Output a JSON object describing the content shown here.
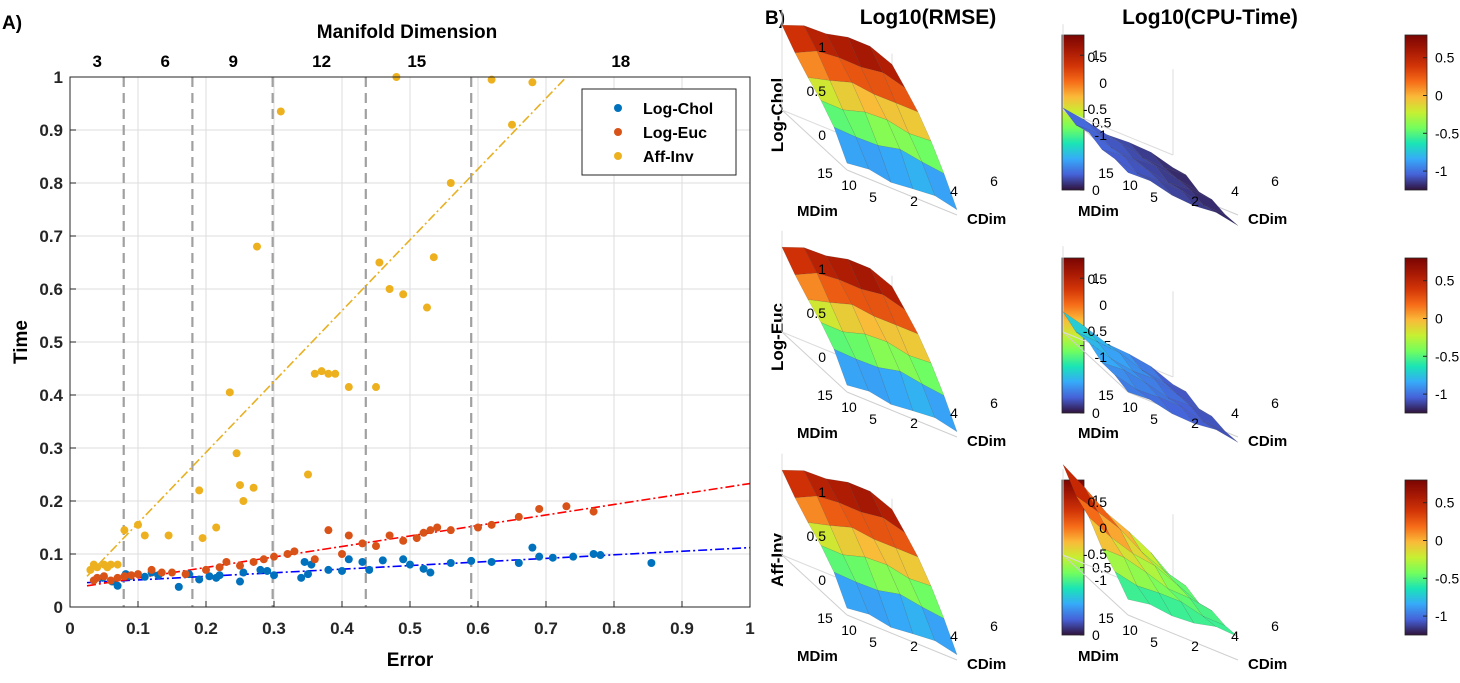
{
  "panel_a_label": "A)",
  "panel_b_label": "B)",
  "chart_data": [
    {
      "type": "scatter",
      "title": "",
      "xlabel": "Error",
      "ylabel": "Time",
      "top_axis_label": "Manifold Dimension",
      "xlim": [
        0,
        1
      ],
      "ylim": [
        0,
        1
      ],
      "x_ticks": [
        0,
        0.1,
        0.2,
        0.3,
        0.4,
        0.5,
        0.6,
        0.7,
        0.8,
        0.9,
        1
      ],
      "x_tick_labels": [
        "0",
        "0.1",
        "0.2",
        "0.3",
        "0.4",
        "0.5",
        "0.6",
        "0.7",
        "0.8",
        "0.9",
        "1"
      ],
      "y_ticks": [
        0,
        0.1,
        0.2,
        0.3,
        0.4,
        0.5,
        0.6,
        0.7,
        0.8,
        0.9,
        1
      ],
      "y_tick_labels": [
        "0",
        "0.1",
        "0.2",
        "0.3",
        "0.4",
        "0.5",
        "0.6",
        "0.7",
        "0.8",
        "0.9",
        "1"
      ],
      "grid": true,
      "legend_position": "top-right",
      "dimension_boundaries": [
        0.079,
        0.18,
        0.298,
        0.435,
        0.59
      ],
      "dimension_labels": [
        {
          "label": "3",
          "x": 0.04
        },
        {
          "label": "6",
          "x": 0.14
        },
        {
          "label": "9",
          "x": 0.24
        },
        {
          "label": "12",
          "x": 0.37
        },
        {
          "label": "15",
          "x": 0.51
        },
        {
          "label": "18",
          "x": 0.81
        }
      ],
      "series": [
        {
          "name": "Log-Chol",
          "color": "#0072BD",
          "line_color": "#0000FF",
          "trend": [
            [
              0.025,
              0.046
            ],
            [
              1.0,
              0.112
            ]
          ],
          "points": [
            [
              0.048,
              0.055
            ],
            [
              0.062,
              0.048
            ],
            [
              0.07,
              0.04
            ],
            [
              0.082,
              0.062
            ],
            [
              0.088,
              0.058
            ],
            [
              0.11,
              0.057
            ],
            [
              0.12,
              0.065
            ],
            [
              0.13,
              0.06
            ],
            [
              0.16,
              0.038
            ],
            [
              0.175,
              0.062
            ],
            [
              0.19,
              0.052
            ],
            [
              0.205,
              0.058
            ],
            [
              0.215,
              0.055
            ],
            [
              0.22,
              0.06
            ],
            [
              0.25,
              0.048
            ],
            [
              0.255,
              0.065
            ],
            [
              0.28,
              0.07
            ],
            [
              0.29,
              0.068
            ],
            [
              0.3,
              0.06
            ],
            [
              0.34,
              0.055
            ],
            [
              0.345,
              0.085
            ],
            [
              0.35,
              0.062
            ],
            [
              0.355,
              0.08
            ],
            [
              0.38,
              0.07
            ],
            [
              0.4,
              0.068
            ],
            [
              0.41,
              0.09
            ],
            [
              0.43,
              0.085
            ],
            [
              0.44,
              0.07
            ],
            [
              0.46,
              0.088
            ],
            [
              0.49,
              0.09
            ],
            [
              0.5,
              0.08
            ],
            [
              0.52,
              0.072
            ],
            [
              0.53,
              0.065
            ],
            [
              0.56,
              0.083
            ],
            [
              0.59,
              0.087
            ],
            [
              0.62,
              0.085
            ],
            [
              0.66,
              0.083
            ],
            [
              0.68,
              0.112
            ],
            [
              0.69,
              0.095
            ],
            [
              0.71,
              0.093
            ],
            [
              0.74,
              0.095
            ],
            [
              0.77,
              0.1
            ],
            [
              0.78,
              0.098
            ],
            [
              0.855,
              0.083
            ]
          ]
        },
        {
          "name": "Log-Euc",
          "color": "#D95319",
          "line_color": "#FF0000",
          "trend": [
            [
              0.025,
              0.04
            ],
            [
              1.0,
              0.233
            ]
          ],
          "points": [
            [
              0.035,
              0.05
            ],
            [
              0.04,
              0.055
            ],
            [
              0.05,
              0.058
            ],
            [
              0.06,
              0.05
            ],
            [
              0.07,
              0.055
            ],
            [
              0.08,
              0.058
            ],
            [
              0.09,
              0.06
            ],
            [
              0.1,
              0.062
            ],
            [
              0.12,
              0.07
            ],
            [
              0.135,
              0.065
            ],
            [
              0.15,
              0.065
            ],
            [
              0.17,
              0.062
            ],
            [
              0.2,
              0.07
            ],
            [
              0.22,
              0.075
            ],
            [
              0.23,
              0.085
            ],
            [
              0.25,
              0.078
            ],
            [
              0.27,
              0.085
            ],
            [
              0.285,
              0.09
            ],
            [
              0.3,
              0.095
            ],
            [
              0.32,
              0.1
            ],
            [
              0.33,
              0.105
            ],
            [
              0.36,
              0.09
            ],
            [
              0.38,
              0.145
            ],
            [
              0.4,
              0.1
            ],
            [
              0.41,
              0.135
            ],
            [
              0.43,
              0.12
            ],
            [
              0.45,
              0.115
            ],
            [
              0.47,
              0.135
            ],
            [
              0.49,
              0.125
            ],
            [
              0.51,
              0.13
            ],
            [
              0.52,
              0.14
            ],
            [
              0.53,
              0.145
            ],
            [
              0.54,
              0.15
            ],
            [
              0.56,
              0.145
            ],
            [
              0.6,
              0.15
            ],
            [
              0.62,
              0.155
            ],
            [
              0.66,
              0.17
            ],
            [
              0.69,
              0.185
            ],
            [
              0.73,
              0.19
            ],
            [
              0.77,
              0.18
            ]
          ]
        },
        {
          "name": "Aff-Inv",
          "color": "#EDB120",
          "line_color": "#E8B023",
          "trend": [
            [
              0.025,
              0.058
            ],
            [
              0.73,
              1.0
            ]
          ],
          "points": [
            [
              0.03,
              0.07
            ],
            [
              0.035,
              0.08
            ],
            [
              0.04,
              0.075
            ],
            [
              0.05,
              0.08
            ],
            [
              0.055,
              0.075
            ],
            [
              0.06,
              0.08
            ],
            [
              0.07,
              0.08
            ],
            [
              0.08,
              0.145
            ],
            [
              0.1,
              0.155
            ],
            [
              0.11,
              0.135
            ],
            [
              0.145,
              0.135
            ],
            [
              0.19,
              0.22
            ],
            [
              0.195,
              0.13
            ],
            [
              0.215,
              0.15
            ],
            [
              0.235,
              0.405
            ],
            [
              0.245,
              0.29
            ],
            [
              0.25,
              0.23
            ],
            [
              0.255,
              0.2
            ],
            [
              0.27,
              0.225
            ],
            [
              0.275,
              0.68
            ],
            [
              0.31,
              0.935
            ],
            [
              0.35,
              0.25
            ],
            [
              0.36,
              0.44
            ],
            [
              0.37,
              0.445
            ],
            [
              0.38,
              0.44
            ],
            [
              0.39,
              0.44
            ],
            [
              0.41,
              0.415
            ],
            [
              0.45,
              0.415
            ],
            [
              0.455,
              0.65
            ],
            [
              0.47,
              0.6
            ],
            [
              0.48,
              1.0
            ],
            [
              0.49,
              0.59
            ],
            [
              0.525,
              0.565
            ],
            [
              0.535,
              0.66
            ],
            [
              0.56,
              0.8
            ],
            [
              0.62,
              0.995
            ],
            [
              0.65,
              0.91
            ],
            [
              0.68,
              0.99
            ]
          ]
        }
      ]
    },
    {
      "type": "surface-grid",
      "column_titles": [
        "Log10(RMSE)",
        "Log10(CPU-Time)"
      ],
      "row_labels": [
        "Log-Chol",
        "Log-Euc",
        "Aff-Inv"
      ],
      "xlabel": "CDim",
      "ylabel": "MDim",
      "x_tick_labels": [
        "2",
        "4",
        "6"
      ],
      "y_tick_labels": [
        "15",
        "10",
        "5"
      ],
      "colormap": "turbo",
      "rmse": {
        "z_ticks": [
          0,
          0.5,
          1
        ],
        "z_tick_labels": [
          "0",
          "0.5",
          "1"
        ],
        "colorbar_range": [
          0,
          1.15
        ],
        "colorbar_ticks": [
          0,
          0.5,
          1
        ],
        "colorbar_labels": [
          "0",
          "0.5",
          "1"
        ]
      },
      "cpu": {
        "z_ticks": [
          -1,
          -0.5,
          0,
          0.5
        ],
        "z_tick_labels": [
          "-1",
          "-0.5",
          "0",
          "0.5"
        ],
        "colorbar_range": [
          -1.25,
          0.8
        ],
        "colorbar_ticks": [
          -1,
          -0.5,
          0,
          0.5
        ],
        "colorbar_labels": [
          "-1",
          "-0.5",
          "0",
          "0.5"
        ]
      },
      "surfaces": {
        "Log-Chol": {
          "rmse_min": 0.0,
          "rmse_max": 1.15,
          "cpu_base": -1.05,
          "cpu_slope": -0.15,
          "cpu_tilt": 0.05
        },
        "Log-Euc": {
          "rmse_min": 0.0,
          "rmse_max": 1.15,
          "cpu_base": -1.0,
          "cpu_slope": -0.1,
          "cpu_tilt": 0.35
        },
        "Aff-Inv": {
          "rmse_min": 0.0,
          "rmse_max": 1.15,
          "cpu_base": -0.7,
          "cpu_slope": 0.15,
          "cpu_tilt": 1.4
        }
      }
    }
  ]
}
